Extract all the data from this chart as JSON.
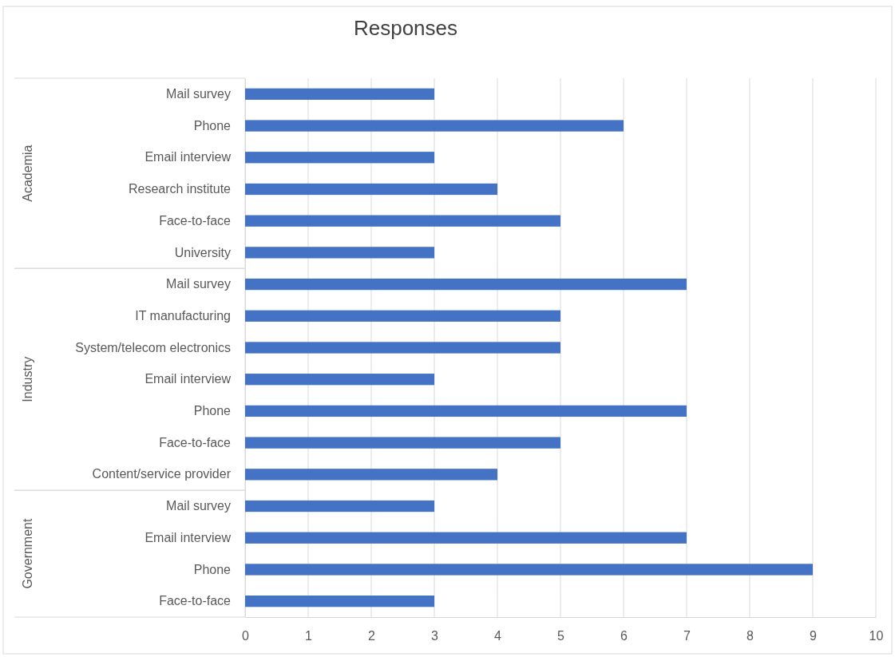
{
  "chart_data": {
    "type": "bar",
    "title": "Responses",
    "orientation": "horizontal",
    "categories": [
      "Mail survey",
      "Phone",
      "Email interview",
      "Research institute",
      "Face-to-face",
      "University",
      "Mail survey",
      "IT manufacturing",
      "System/telecom electronics",
      "Email interview",
      "Phone",
      "Face-to-face",
      "Content/service provider",
      "Mail survey",
      "Email interview",
      "Phone",
      "Face-to-face"
    ],
    "values": [
      3,
      6,
      3,
      4,
      5,
      3,
      7,
      5,
      5,
      3,
      7,
      5,
      4,
      3,
      7,
      9,
      3
    ],
    "color": "#4472c4",
    "xlim": [
      0,
      10
    ],
    "xticks": [
      0,
      1,
      2,
      3,
      4,
      5,
      6,
      7,
      8,
      9,
      10
    ],
    "grid": "x",
    "annotations": [
      "Academia",
      "Industry",
      "Government"
    ]
  }
}
